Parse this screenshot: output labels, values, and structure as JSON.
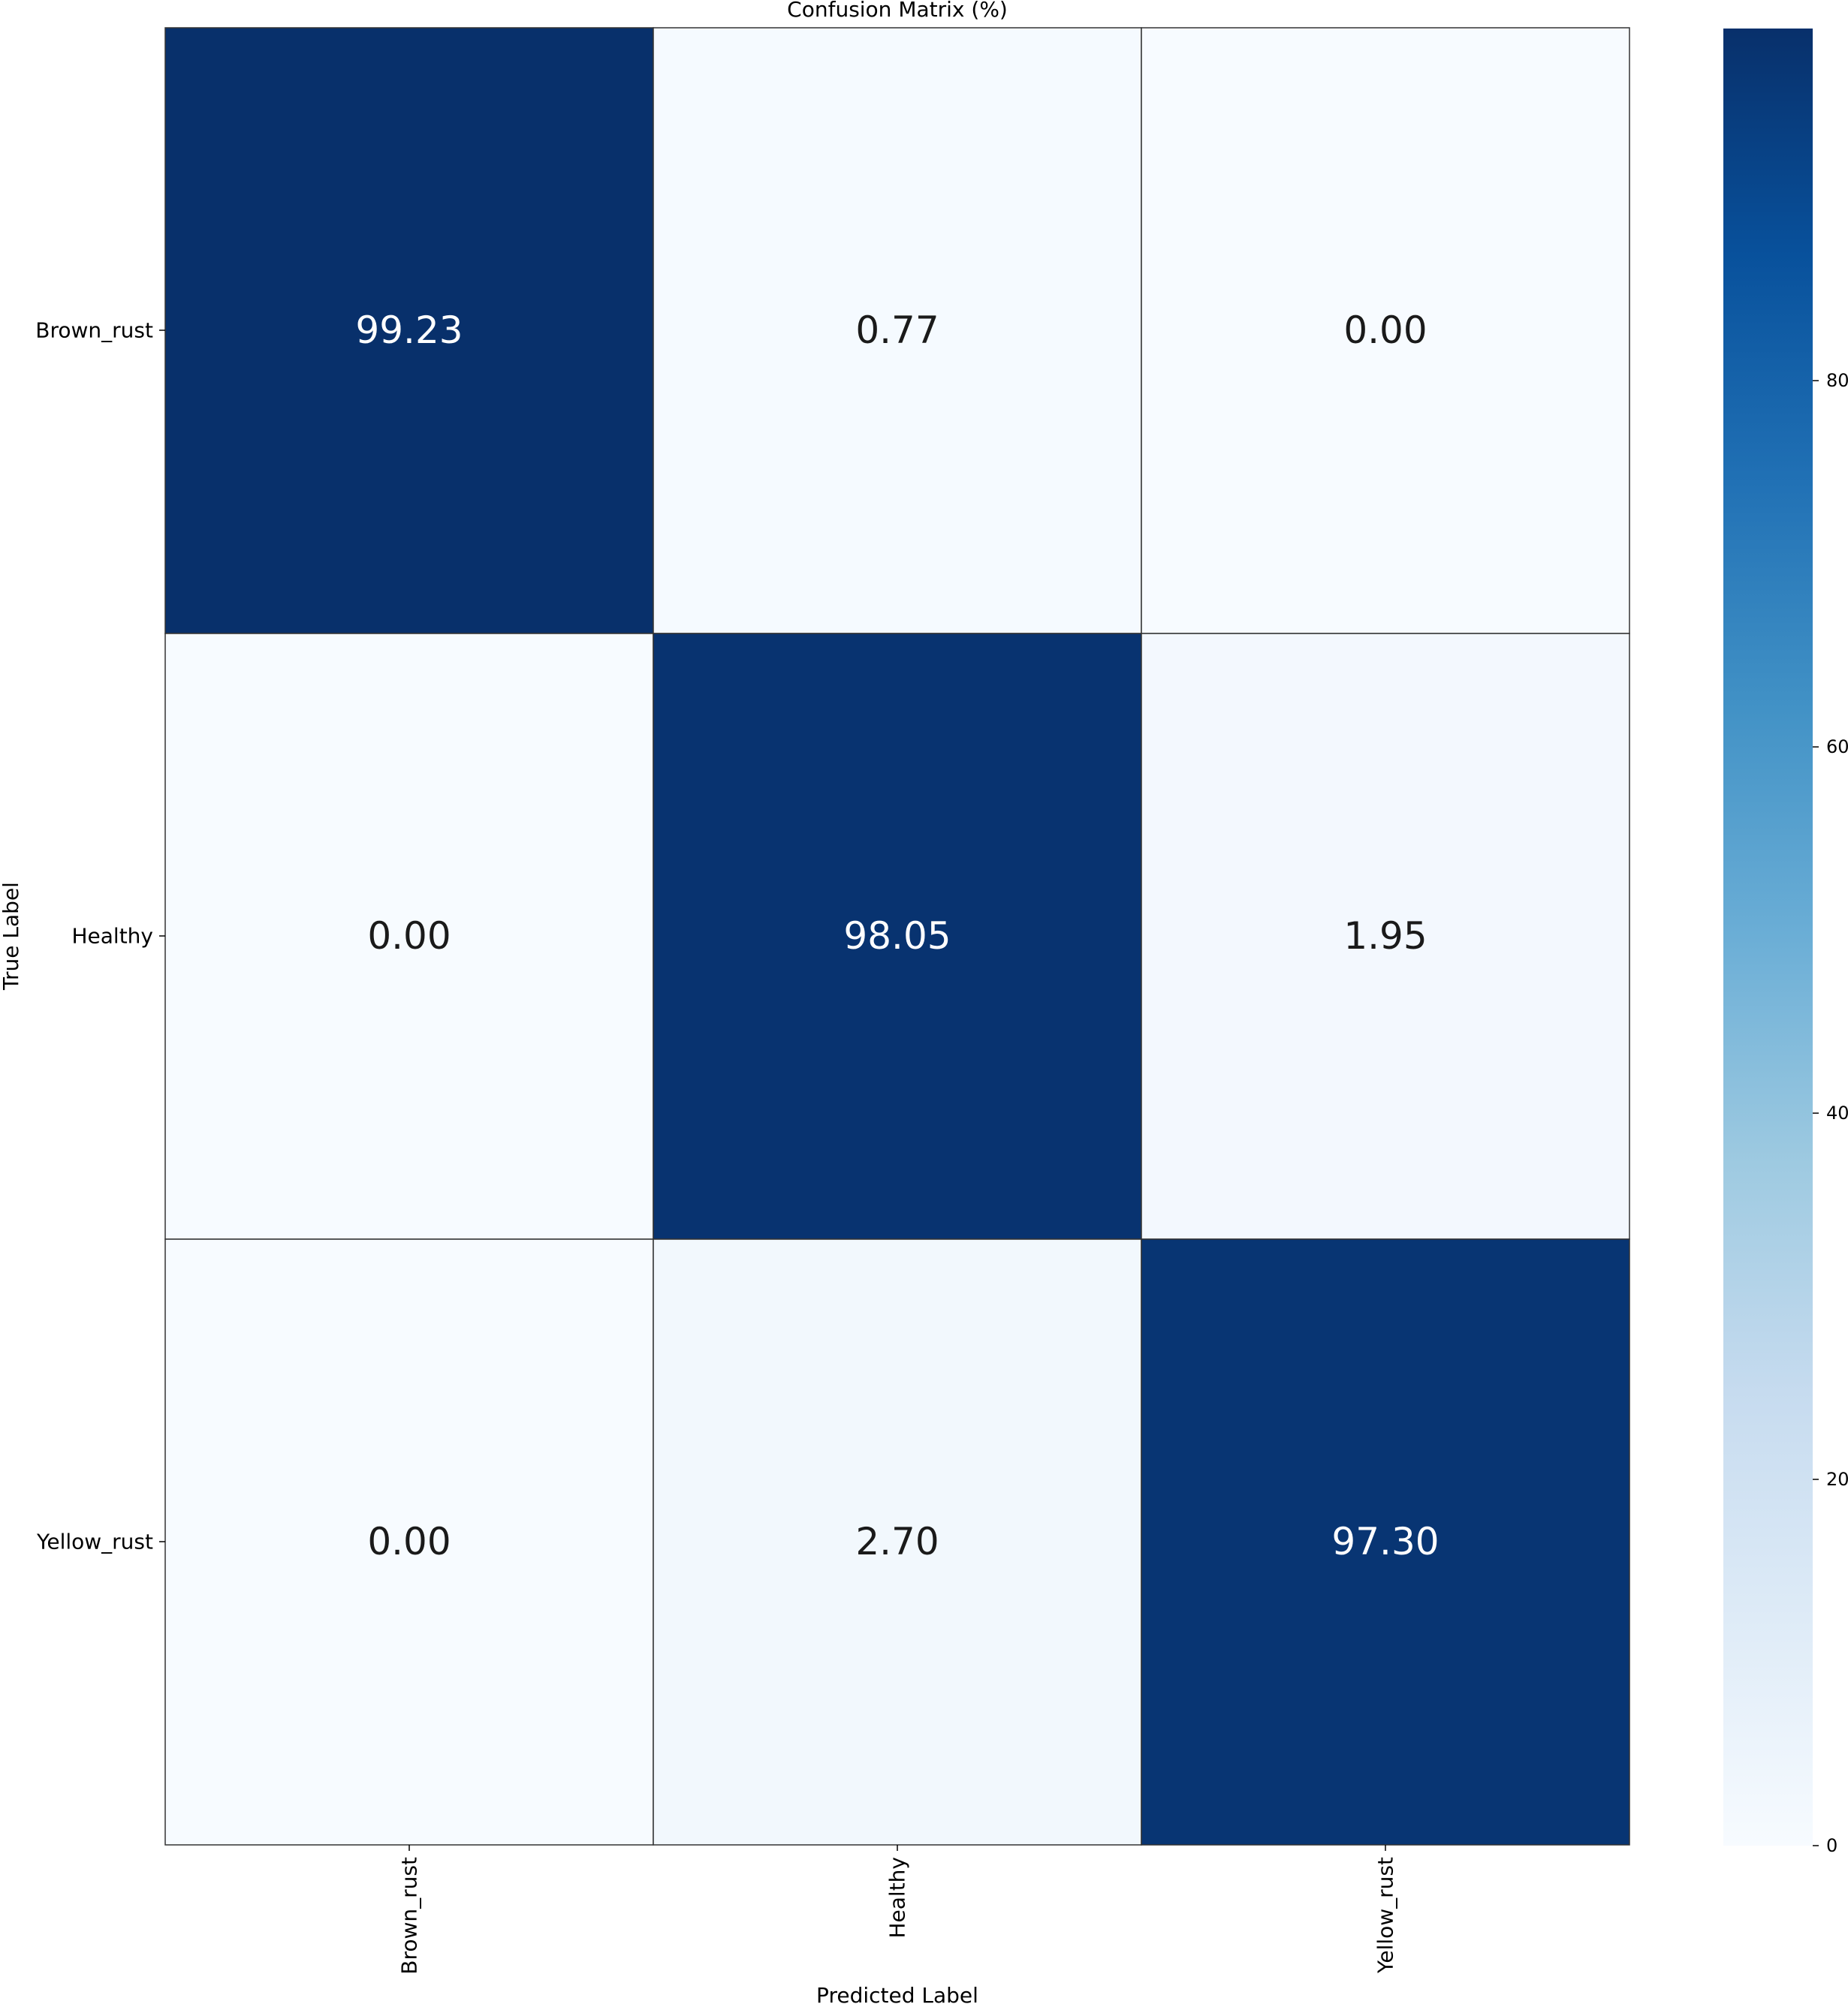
{
  "chart_data": {
    "type": "heatmap",
    "title": "Confusion Matrix (%)",
    "xlabel": "Predicted Label",
    "ylabel": "True Label",
    "x_categories": [
      "Brown_rust",
      "Healthy",
      "Yellow_rust"
    ],
    "y_categories": [
      "Brown_rust",
      "Healthy",
      "Yellow_rust"
    ],
    "values": [
      [
        99.23,
        0.77,
        0.0
      ],
      [
        0.0,
        98.05,
        1.95
      ],
      [
        0.0,
        2.7,
        97.3
      ]
    ],
    "value_labels": [
      [
        "99.23",
        "0.77",
        "0.00"
      ],
      [
        "0.00",
        "98.05",
        "1.95"
      ],
      [
        "0.00",
        "2.70",
        "97.30"
      ]
    ],
    "colormap": "Blues",
    "color_range": [
      0,
      99.23
    ],
    "colorbar": {
      "ticks": [
        0,
        20,
        40,
        60,
        80
      ],
      "tick_labels": [
        "0",
        "20",
        "40",
        "60",
        "80"
      ]
    },
    "colors": {
      "low": "#f7fbff",
      "high": "#08306b",
      "text_on_dark": "#ffffff",
      "text_on_light": "#1a1a1a",
      "cell_border": "#333333"
    },
    "grid": false,
    "legend": "colorbar-right"
  }
}
